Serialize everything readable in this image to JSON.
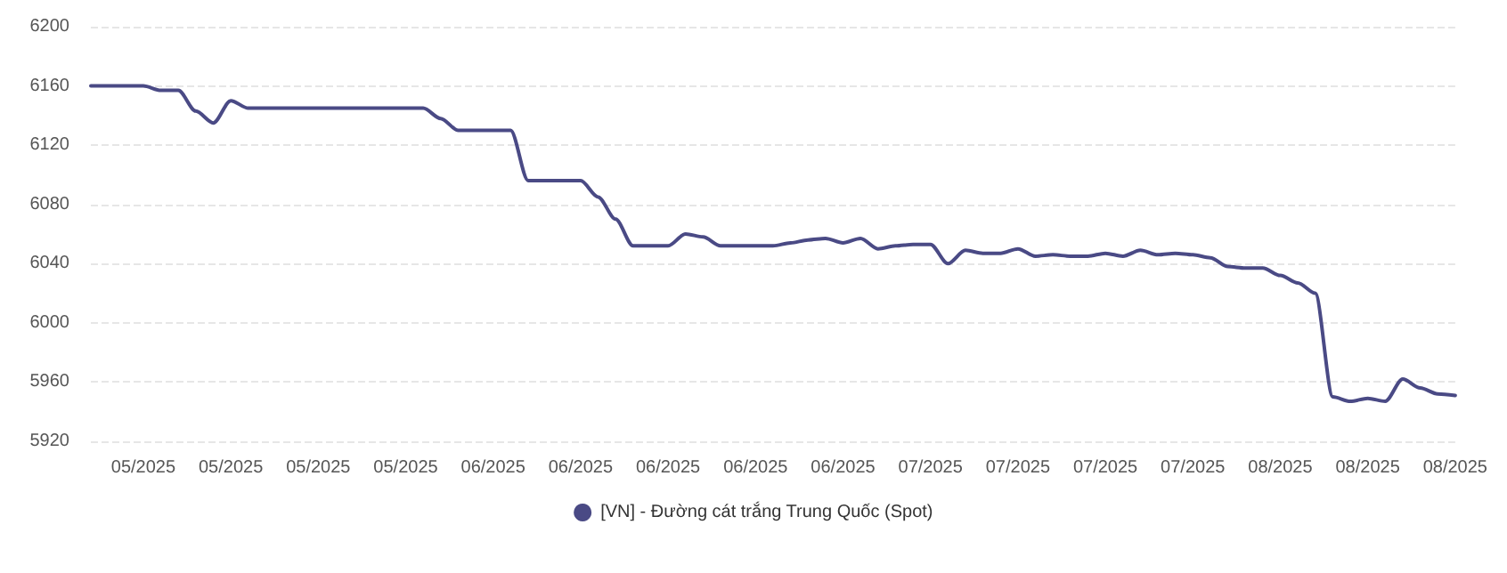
{
  "chart_data": {
    "type": "line",
    "categories": [
      null,
      null,
      null,
      "05/2025",
      null,
      null,
      null,
      null,
      "05/2025",
      null,
      null,
      null,
      null,
      "05/2025",
      null,
      null,
      null,
      null,
      "05/2025",
      null,
      null,
      null,
      null,
      "06/2025",
      null,
      null,
      null,
      null,
      "06/2025",
      null,
      null,
      null,
      null,
      "06/2025",
      null,
      null,
      null,
      null,
      "06/2025",
      null,
      null,
      null,
      null,
      "06/2025",
      null,
      null,
      null,
      null,
      "07/2025",
      null,
      null,
      null,
      null,
      "07/2025",
      null,
      null,
      null,
      null,
      "07/2025",
      null,
      null,
      null,
      null,
      "07/2025",
      null,
      null,
      null,
      null,
      "08/2025",
      null,
      null,
      null,
      null,
      "08/2025",
      null,
      null,
      null,
      null,
      "08/2025"
    ],
    "series": [
      {
        "name": "[VN] - Đường cát trắng Trung Quốc (Spot)",
        "color": "#4a4a85",
        "values": [
          6160,
          6160,
          6160,
          6160,
          6157,
          6157,
          6143,
          6135,
          6150,
          6145,
          6145,
          6145,
          6145,
          6145,
          6145,
          6145,
          6145,
          6145,
          6145,
          6145,
          6138,
          6130,
          6130,
          6130,
          6130,
          6096,
          6096,
          6096,
          6096,
          6085,
          6070,
          6052,
          6052,
          6052,
          6060,
          6058,
          6052,
          6052,
          6052,
          6052,
          6054,
          6056,
          6057,
          6054,
          6057,
          6050,
          6052,
          6053,
          6053,
          6040,
          6049,
          6047,
          6047,
          6050,
          6045,
          6046,
          6045,
          6045,
          6047,
          6045,
          6049,
          6046,
          6047,
          6046,
          6044,
          6038,
          6037,
          6037,
          6032,
          6027,
          6020,
          5950,
          5947,
          5949,
          5947,
          5962,
          5956,
          5952,
          5951
        ]
      }
    ],
    "ylim": [
      5920,
      6200
    ],
    "yticks": [
      5920,
      5960,
      6000,
      6040,
      6080,
      6120,
      6160,
      6200
    ],
    "grid": "y",
    "legend": "bottom",
    "marker": "none",
    "line_style": "solid"
  }
}
